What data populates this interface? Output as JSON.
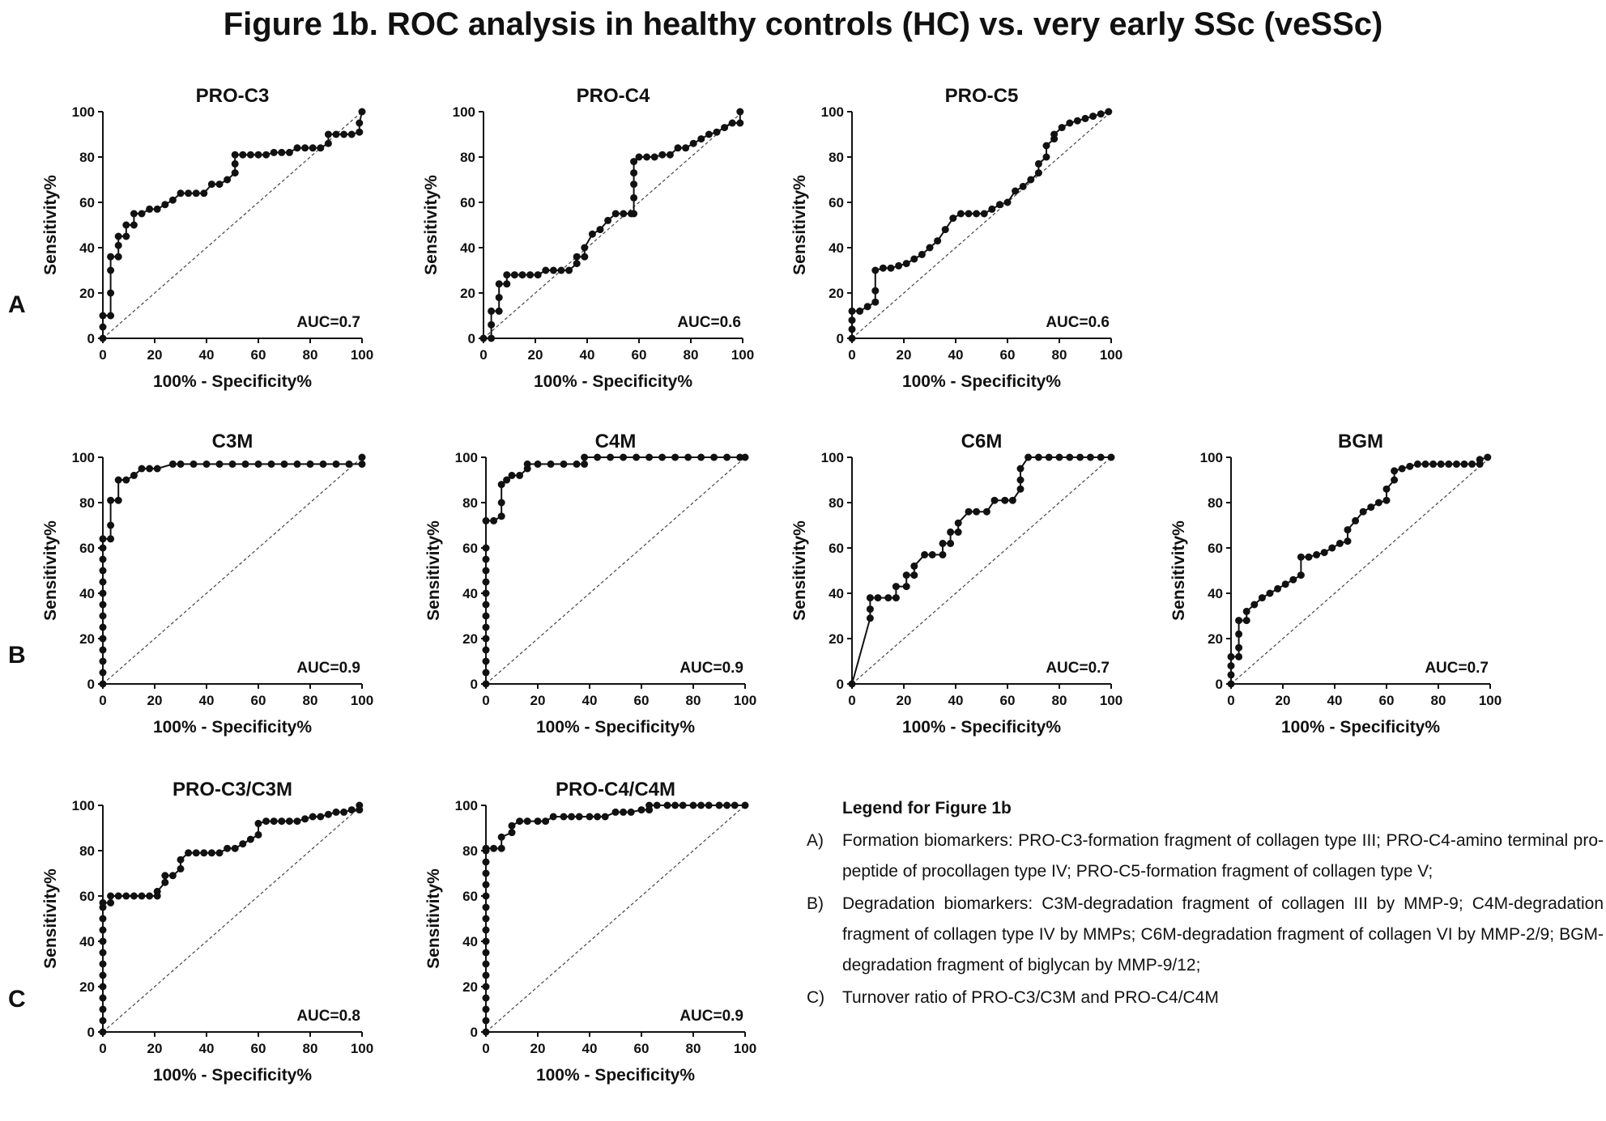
{
  "page_title": "Figure 1b. ROC analysis in healthy controls (HC) vs. very early SSc (veSSc)",
  "row_labels": [
    "A",
    "B",
    "C"
  ],
  "legend": {
    "title": "Legend for Figure 1b",
    "items": [
      {
        "marker": "A)",
        "text": "Formation biomarkers: PRO-C3-formation fragment of collagen type III; PRO-C4-amino terminal pro-peptide of procollagen type IV; PRO-C5-formation fragment of collagen type V;"
      },
      {
        "marker": "B)",
        "text": "Degradation biomarkers: C3M-degradation fragment of collagen III by MMP-9; C4M-degradation fragment of collagen type IV by MMPs; C6M-degradation fragment of collagen VI by MMP-2/9; BGM-degradation fragment of biglycan by MMP-9/12;"
      },
      {
        "marker": "C)",
        "text": "Turnover ratio of PRO-C3/C3M and PRO-C4/C4M"
      }
    ]
  },
  "colors": {
    "line": "#111111",
    "reference": "#444444",
    "background": "#ffffff"
  },
  "chart_data": [
    {
      "type": "line",
      "title": "PRO-C3",
      "xlabel": "100% - Specificity%",
      "ylabel": "Sensitivity%",
      "annotation": "AUC=0.7",
      "xlim": [
        0,
        100
      ],
      "ylim": [
        0,
        100
      ],
      "xticks": [
        0,
        20,
        40,
        60,
        80,
        100
      ],
      "yticks": [
        0,
        20,
        40,
        60,
        80,
        100
      ],
      "reference_line": "diagonal",
      "x": [
        0,
        0,
        0,
        3,
        3,
        3,
        3,
        6,
        6,
        6,
        9,
        9,
        12,
        12,
        15,
        18,
        21,
        24,
        27,
        30,
        33,
        36,
        39,
        42,
        45,
        48,
        51,
        51,
        51,
        54,
        57,
        60,
        63,
        66,
        69,
        72,
        75,
        78,
        81,
        84,
        87,
        87,
        90,
        93,
        96,
        99,
        99,
        100
      ],
      "y": [
        0,
        5,
        10,
        10,
        20,
        30,
        36,
        36,
        41,
        45,
        45,
        50,
        50,
        55,
        55,
        57,
        57,
        59,
        61,
        64,
        64,
        64,
        64,
        68,
        68,
        70,
        73,
        77,
        81,
        81,
        81,
        81,
        81,
        82,
        82,
        82,
        84,
        84,
        84,
        84,
        86,
        90,
        90,
        90,
        90,
        91,
        95,
        100
      ]
    },
    {
      "type": "line",
      "title": "PRO-C4",
      "xlabel": "100% - Specificity%",
      "ylabel": "Sensitivity%",
      "annotation": "AUC=0.6",
      "xlim": [
        0,
        100
      ],
      "ylim": [
        0,
        100
      ],
      "xticks": [
        0,
        20,
        40,
        60,
        80,
        100
      ],
      "yticks": [
        0,
        20,
        40,
        60,
        80,
        100
      ],
      "reference_line": "diagonal",
      "x": [
        0,
        3,
        3,
        3,
        6,
        6,
        6,
        9,
        9,
        12,
        15,
        18,
        21,
        24,
        27,
        30,
        33,
        36,
        36,
        39,
        39,
        42,
        45,
        48,
        51,
        54,
        57,
        58,
        58,
        58,
        58,
        58,
        60,
        63,
        66,
        69,
        72,
        75,
        78,
        81,
        84,
        87,
        90,
        93,
        96,
        99,
        99
      ],
      "y": [
        0,
        0,
        6,
        12,
        12,
        18,
        24,
        24,
        28,
        28,
        28,
        28,
        28,
        30,
        30,
        30,
        30,
        33,
        36,
        36,
        40,
        46,
        48,
        52,
        55,
        55,
        55,
        55,
        62,
        68,
        73,
        78,
        80,
        80,
        80,
        81,
        81,
        84,
        84,
        86,
        88,
        90,
        91,
        93,
        95,
        95,
        100
      ]
    },
    {
      "type": "line",
      "title": "PRO-C5",
      "xlabel": "100% - Specificity%",
      "ylabel": "Sensitivity%",
      "annotation": "AUC=0.6",
      "xlim": [
        0,
        100
      ],
      "ylim": [
        0,
        100
      ],
      "xticks": [
        0,
        20,
        40,
        60,
        80,
        100
      ],
      "yticks": [
        0,
        20,
        40,
        60,
        80,
        100
      ],
      "reference_line": "diagonal",
      "x": [
        0,
        0,
        0,
        0,
        3,
        6,
        9,
        9,
        9,
        12,
        15,
        18,
        21,
        24,
        27,
        30,
        33,
        36,
        39,
        42,
        45,
        48,
        51,
        54,
        57,
        60,
        63,
        66,
        69,
        72,
        72,
        75,
        75,
        78,
        78,
        81,
        84,
        87,
        90,
        93,
        96,
        99
      ],
      "y": [
        0,
        4,
        8,
        12,
        12,
        14,
        16,
        21,
        30,
        31,
        31,
        32,
        33,
        35,
        37,
        40,
        43,
        48,
        53,
        55,
        55,
        55,
        55,
        57,
        59,
        60,
        65,
        67,
        70,
        73,
        77,
        80,
        85,
        88,
        90,
        93,
        95,
        96,
        97,
        98,
        99,
        100
      ]
    },
    {
      "type": "line",
      "title": "C3M",
      "xlabel": "100% - Specificity%",
      "ylabel": "Sensitivity%",
      "annotation": "AUC=0.9",
      "xlim": [
        0,
        100
      ],
      "ylim": [
        0,
        100
      ],
      "xticks": [
        0,
        20,
        40,
        60,
        80,
        100
      ],
      "yticks": [
        0,
        20,
        40,
        60,
        80,
        100
      ],
      "reference_line": "diagonal",
      "x": [
        0,
        0,
        0,
        0,
        0,
        0,
        0,
        0,
        0,
        0,
        0,
        0,
        0,
        0,
        3,
        3,
        3,
        6,
        6,
        9,
        12,
        15,
        18,
        21,
        27,
        30,
        35,
        40,
        45,
        50,
        55,
        60,
        65,
        70,
        75,
        80,
        85,
        90,
        95,
        100,
        100
      ],
      "y": [
        0,
        5,
        10,
        15,
        20,
        25,
        30,
        35,
        40,
        45,
        50,
        55,
        60,
        64,
        64,
        70,
        81,
        81,
        90,
        90,
        92,
        95,
        95,
        95,
        97,
        97,
        97,
        97,
        97,
        97,
        97,
        97,
        97,
        97,
        97,
        97,
        97,
        97,
        97,
        97,
        100
      ]
    },
    {
      "type": "line",
      "title": "C4M",
      "xlabel": "100% - Specificity%",
      "ylabel": "Sensitivity%",
      "annotation": "AUC=0.9",
      "xlim": [
        0,
        100
      ],
      "ylim": [
        0,
        100
      ],
      "xticks": [
        0,
        20,
        40,
        60,
        80,
        100
      ],
      "yticks": [
        0,
        20,
        40,
        60,
        80,
        100
      ],
      "reference_line": "diagonal",
      "x": [
        0,
        0,
        0,
        0,
        0,
        0,
        0,
        0,
        0,
        0,
        0,
        0,
        0,
        0,
        3,
        6,
        6,
        6,
        8,
        10,
        13,
        16,
        16,
        20,
        25,
        30,
        35,
        38,
        38,
        43,
        48,
        53,
        58,
        63,
        68,
        73,
        78,
        83,
        88,
        93,
        98,
        100
      ],
      "y": [
        0,
        5,
        10,
        15,
        20,
        25,
        30,
        35,
        40,
        45,
        50,
        55,
        60,
        72,
        72,
        74,
        80,
        88,
        90,
        92,
        92,
        95,
        97,
        97,
        97,
        97,
        97,
        97,
        100,
        100,
        100,
        100,
        100,
        100,
        100,
        100,
        100,
        100,
        100,
        100,
        100,
        100
      ]
    },
    {
      "type": "line",
      "title": "C6M",
      "xlabel": "100% - Specificity%",
      "ylabel": "Sensitivity%",
      "annotation": "AUC=0.7",
      "xlim": [
        0,
        100
      ],
      "ylim": [
        0,
        100
      ],
      "xticks": [
        0,
        20,
        40,
        60,
        80,
        100
      ],
      "yticks": [
        0,
        20,
        40,
        60,
        80,
        100
      ],
      "reference_line": "diagonal",
      "x": [
        0,
        7,
        7,
        7,
        10,
        14,
        17,
        17,
        21,
        21,
        24,
        24,
        28,
        31,
        35,
        35,
        38,
        38,
        41,
        41,
        45,
        48,
        52,
        55,
        59,
        62,
        65,
        65,
        65,
        68,
        72,
        76,
        80,
        84,
        88,
        92,
        96,
        100
      ],
      "y": [
        0,
        29,
        33,
        38,
        38,
        38,
        38,
        43,
        43,
        48,
        48,
        52,
        57,
        57,
        57,
        62,
        62,
        67,
        67,
        71,
        76,
        76,
        76,
        81,
        81,
        81,
        86,
        90,
        95,
        100,
        100,
        100,
        100,
        100,
        100,
        100,
        100,
        100
      ]
    },
    {
      "type": "line",
      "title": "BGM",
      "xlabel": "100% - Specificity%",
      "ylabel": "Sensitivity%",
      "annotation": "AUC=0.7",
      "xlim": [
        0,
        100
      ],
      "ylim": [
        0,
        100
      ],
      "xticks": [
        0,
        20,
        40,
        60,
        80,
        100
      ],
      "yticks": [
        0,
        20,
        40,
        60,
        80,
        100
      ],
      "reference_line": "diagonal",
      "x": [
        0,
        0,
        0,
        0,
        3,
        3,
        3,
        3,
        6,
        6,
        9,
        12,
        15,
        18,
        21,
        24,
        27,
        27,
        30,
        33,
        36,
        39,
        42,
        45,
        45,
        48,
        51,
        54,
        57,
        60,
        60,
        63,
        63,
        66,
        69,
        72,
        75,
        78,
        81,
        84,
        87,
        90,
        93,
        96,
        96,
        99
      ],
      "y": [
        0,
        4,
        8,
        12,
        12,
        16,
        22,
        28,
        28,
        32,
        35,
        38,
        40,
        42,
        44,
        46,
        48,
        56,
        56,
        57,
        58,
        60,
        62,
        63,
        68,
        72,
        76,
        78,
        80,
        81,
        86,
        90,
        94,
        95,
        96,
        97,
        97,
        97,
        97,
        97,
        97,
        97,
        97,
        97,
        99,
        100
      ]
    },
    {
      "type": "line",
      "title": "PRO-C3/C3M",
      "xlabel": "100% - Specificity%",
      "ylabel": "Sensitivity%",
      "annotation": "AUC=0.8",
      "xlim": [
        0,
        100
      ],
      "ylim": [
        0,
        100
      ],
      "xticks": [
        0,
        20,
        40,
        60,
        80,
        100
      ],
      "yticks": [
        0,
        20,
        40,
        60,
        80,
        100
      ],
      "reference_line": "diagonal",
      "x": [
        0,
        0,
        0,
        0,
        0,
        0,
        0,
        0,
        0,
        0,
        0,
        0,
        0,
        3,
        3,
        6,
        9,
        12,
        15,
        18,
        21,
        21,
        24,
        24,
        27,
        30,
        30,
        33,
        36,
        39,
        42,
        45,
        48,
        51,
        54,
        57,
        60,
        60,
        63,
        66,
        69,
        72,
        75,
        78,
        81,
        84,
        87,
        90,
        93,
        96,
        99,
        99
      ],
      "y": [
        0,
        5,
        10,
        15,
        20,
        25,
        30,
        35,
        40,
        45,
        50,
        55,
        57,
        57,
        60,
        60,
        60,
        60,
        60,
        60,
        60,
        62,
        66,
        69,
        69,
        72,
        76,
        79,
        79,
        79,
        79,
        79,
        81,
        81,
        83,
        85,
        87,
        92,
        93,
        93,
        93,
        93,
        93,
        94,
        95,
        95,
        96,
        97,
        97,
        98,
        98,
        100
      ]
    },
    {
      "type": "line",
      "title": "PRO-C4/C4M",
      "xlabel": "100% - Specificity%",
      "ylabel": "Sensitivity%",
      "annotation": "AUC=0.9",
      "xlim": [
        0,
        100
      ],
      "ylim": [
        0,
        100
      ],
      "xticks": [
        0,
        20,
        40,
        60,
        80,
        100
      ],
      "yticks": [
        0,
        20,
        40,
        60,
        80,
        100
      ],
      "reference_line": "diagonal",
      "x": [
        0,
        0,
        0,
        0,
        0,
        0,
        0,
        0,
        0,
        0,
        0,
        0,
        0,
        0,
        0,
        0,
        0,
        0,
        3,
        6,
        6,
        10,
        10,
        13,
        16,
        20,
        23,
        26,
        30,
        33,
        36,
        40,
        43,
        46,
        50,
        53,
        56,
        60,
        63,
        63,
        66,
        70,
        73,
        76,
        80,
        83,
        86,
        90,
        93,
        96,
        100
      ],
      "y": [
        0,
        5,
        10,
        15,
        20,
        25,
        30,
        35,
        40,
        45,
        50,
        55,
        60,
        65,
        70,
        75,
        80,
        81,
        81,
        81,
        86,
        88,
        91,
        93,
        93,
        93,
        93,
        95,
        95,
        95,
        95,
        95,
        95,
        95,
        97,
        97,
        97,
        98,
        98,
        100,
        100,
        100,
        100,
        100,
        100,
        100,
        100,
        100,
        100,
        100,
        100
      ]
    }
  ]
}
